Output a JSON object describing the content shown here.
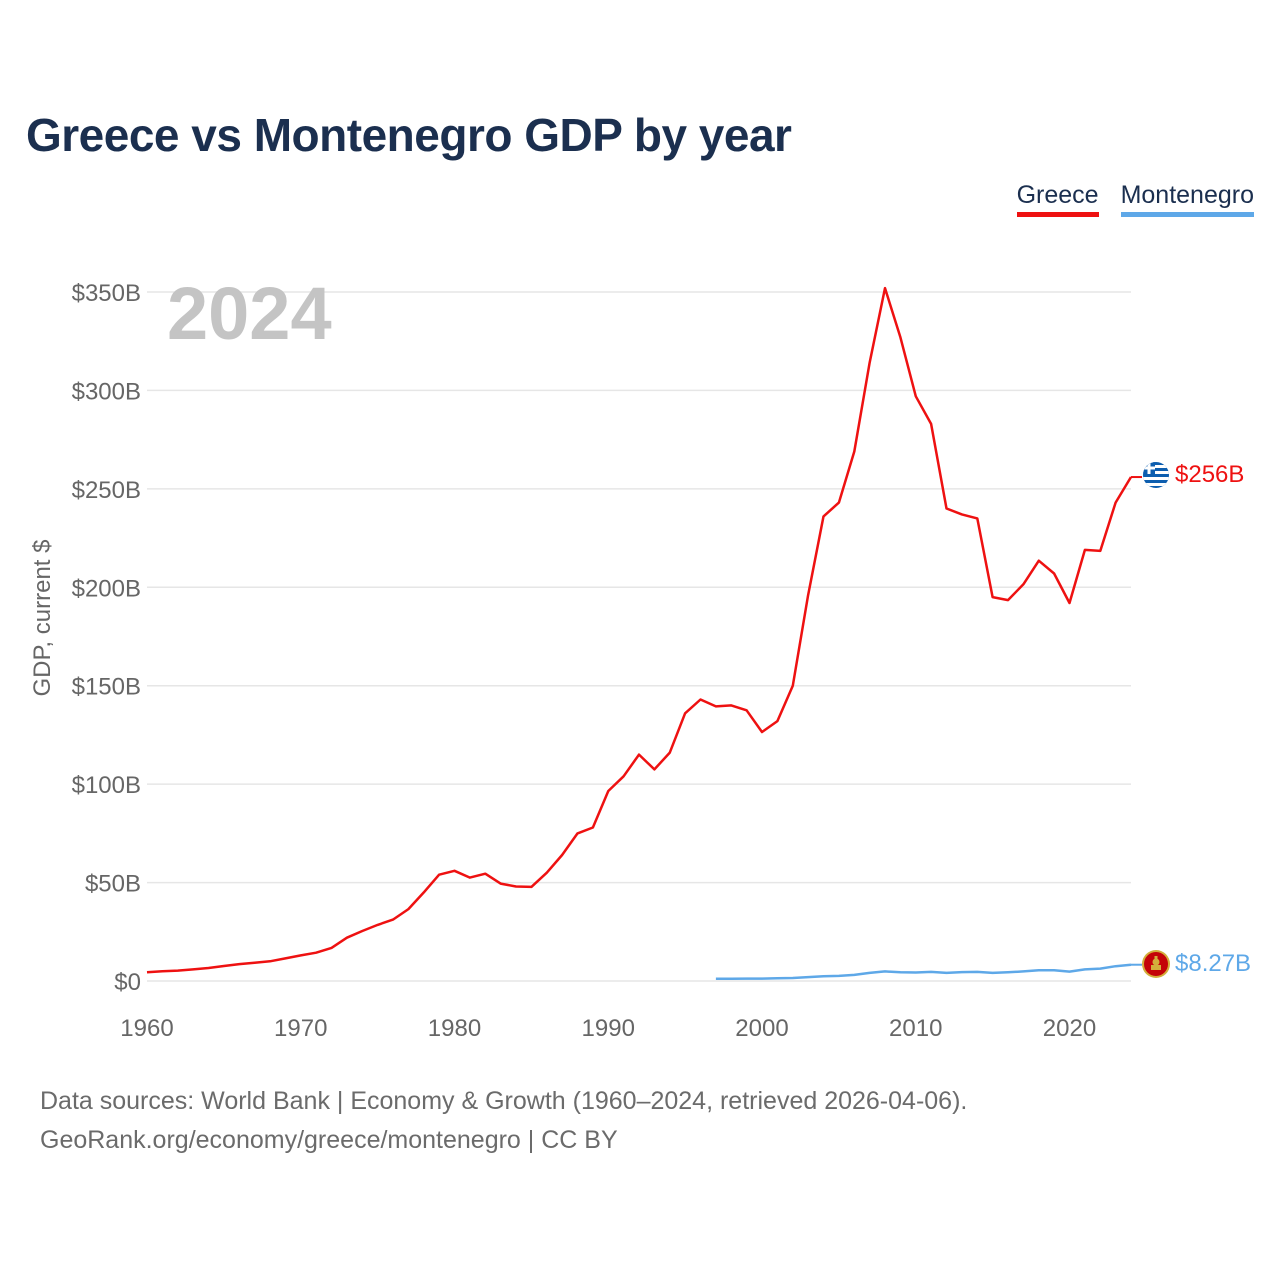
{
  "title": "Greece vs Montenegro GDP by year",
  "legend": [
    {
      "label": "Greece",
      "color": "#ee1111"
    },
    {
      "label": "Montenegro",
      "color": "#5ea8e8"
    }
  ],
  "year_label": "2024",
  "footer": {
    "line1": "Data sources: World Bank | Economy & Growth (1960–2024, retrieved 2026-04-06).",
    "line2": "GeoRank.org/economy/greece/montenegro | CC BY"
  },
  "chart_data": {
    "type": "line",
    "title": "Greece vs Montenegro GDP by year",
    "xlabel": "",
    "ylabel": "GDP, current $",
    "xlim": [
      1960,
      2024
    ],
    "ylim": [
      0,
      350
    ],
    "y_unit": "billion USD",
    "x_ticks": [
      1960,
      1970,
      1980,
      1990,
      2000,
      2010,
      2020
    ],
    "x_tick_labels": [
      "1960",
      "1970",
      "1980",
      "1990",
      "2000",
      "2010",
      "2020"
    ],
    "y_ticks": [
      0,
      50,
      100,
      150,
      200,
      250,
      300,
      350
    ],
    "y_tick_labels": [
      "$0",
      "$50B",
      "$100B",
      "$150B",
      "$200B",
      "$250B",
      "$300B",
      "$350B"
    ],
    "grid": true,
    "legend_position": "top-right",
    "series": [
      {
        "name": "Greece",
        "color": "#ee1111",
        "end_label": "$256B",
        "flag": "greece-flag",
        "x": [
          1960,
          1961,
          1962,
          1963,
          1964,
          1965,
          1966,
          1967,
          1968,
          1969,
          1970,
          1971,
          1972,
          1973,
          1974,
          1975,
          1976,
          1977,
          1978,
          1979,
          1980,
          1981,
          1982,
          1983,
          1984,
          1985,
          1986,
          1987,
          1988,
          1989,
          1990,
          1991,
          1992,
          1993,
          1994,
          1995,
          1996,
          1997,
          1998,
          1999,
          2000,
          2001,
          2002,
          2003,
          2004,
          2005,
          2006,
          2007,
          2008,
          2009,
          2010,
          2011,
          2012,
          2013,
          2014,
          2015,
          2016,
          2017,
          2018,
          2019,
          2020,
          2021,
          2022,
          2023,
          2024
        ],
        "values": [
          4.4,
          5.0,
          5.3,
          5.9,
          6.6,
          7.6,
          8.6,
          9.3,
          10.0,
          11.5,
          13.0,
          14.4,
          16.8,
          22.0,
          25.4,
          28.5,
          31.2,
          36.5,
          45.0,
          54.0,
          56.0,
          52.5,
          54.5,
          49.5,
          48.0,
          47.8,
          55.0,
          64.0,
          75.0,
          78.0,
          96.5,
          104.0,
          115.0,
          107.5,
          116.0,
          136.0,
          143.0,
          139.5,
          140.0,
          137.5,
          126.5,
          132.0,
          150.0,
          196.0,
          236.0,
          243.0,
          269.0,
          314.0,
          352.0,
          327.0,
          297.0,
          283.0,
          240.0,
          237.0,
          235.0,
          195.0,
          193.5,
          201.5,
          213.5,
          207.0,
          192.0,
          219.0,
          218.5,
          243.0,
          256.0
        ]
      },
      {
        "name": "Montenegro",
        "color": "#5ea8e8",
        "end_label": "$8.27B",
        "flag": "montenegro-flag",
        "x": [
          1997,
          1998,
          1999,
          2000,
          2001,
          2002,
          2003,
          2004,
          2005,
          2006,
          2007,
          2008,
          2009,
          2010,
          2011,
          2012,
          2013,
          2014,
          2015,
          2016,
          2017,
          2018,
          2019,
          2020,
          2021,
          2022,
          2023,
          2024
        ],
        "values": [
          1.1,
          1.1,
          1.2,
          1.2,
          1.4,
          1.5,
          2.0,
          2.4,
          2.6,
          3.1,
          4.1,
          4.9,
          4.4,
          4.3,
          4.6,
          4.1,
          4.5,
          4.6,
          4.1,
          4.4,
          4.9,
          5.5,
          5.5,
          4.8,
          5.9,
          6.3,
          7.5,
          8.27
        ]
      }
    ]
  }
}
